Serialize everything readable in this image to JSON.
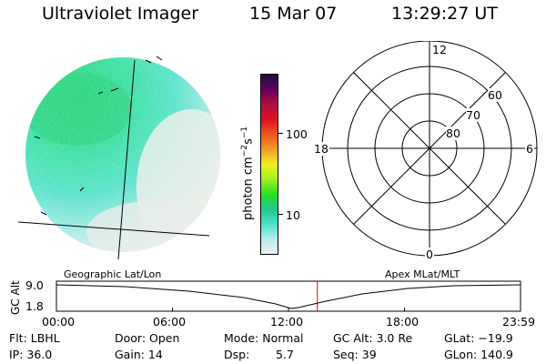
{
  "header": {
    "instrument": "Ultraviolet Imager",
    "date": "15 Mar 07",
    "time": "13:29:27 UT"
  },
  "colorbar": {
    "unit_main": "photon cm",
    "unit_sup1": "−2",
    "unit_s": "s",
    "unit_sup2": "−1",
    "tick_100": "100",
    "tick_10": "10",
    "colors": [
      "#f0f0f0",
      "#b8ecec",
      "#49e0c6",
      "#1ec88e",
      "#25e025",
      "#a8f020",
      "#f0f020",
      "#f0a020",
      "#f05020",
      "#e01020",
      "#b01040",
      "#600060",
      "#201040"
    ]
  },
  "polar_plot": {
    "mlt_labels": {
      "top": "12",
      "left": "18",
      "right": "6",
      "bottom": "0"
    },
    "mlat_labels": [
      "60",
      "70",
      "80"
    ]
  },
  "timeline": {
    "ylabel": "GC Alt",
    "ytick_top": "9.0",
    "ytick_bottom": "1.8",
    "left_title": "Geographic Lat/Lon",
    "right_title": "Apex MLat/MLT",
    "xticks": [
      "00:00",
      "06:00",
      "12:00",
      "18:00",
      "23:59"
    ],
    "current_time_fraction": 0.5622,
    "marker_color": "#dd0000"
  },
  "status": {
    "row1": {
      "flt": "Flt: LBHL",
      "door": "Door: Open",
      "mode": "Mode: Normal",
      "gcalt": "GC Alt: 3.0 Re",
      "glat": "GLat: −19.9"
    },
    "row2": {
      "ip": "IP: 36.0",
      "gain": "Gain: 14",
      "dsp_label": "Dsp:",
      "dsp_value": "5.7",
      "seq": "Seq: 39",
      "glon": "GLon: 140.9"
    }
  }
}
